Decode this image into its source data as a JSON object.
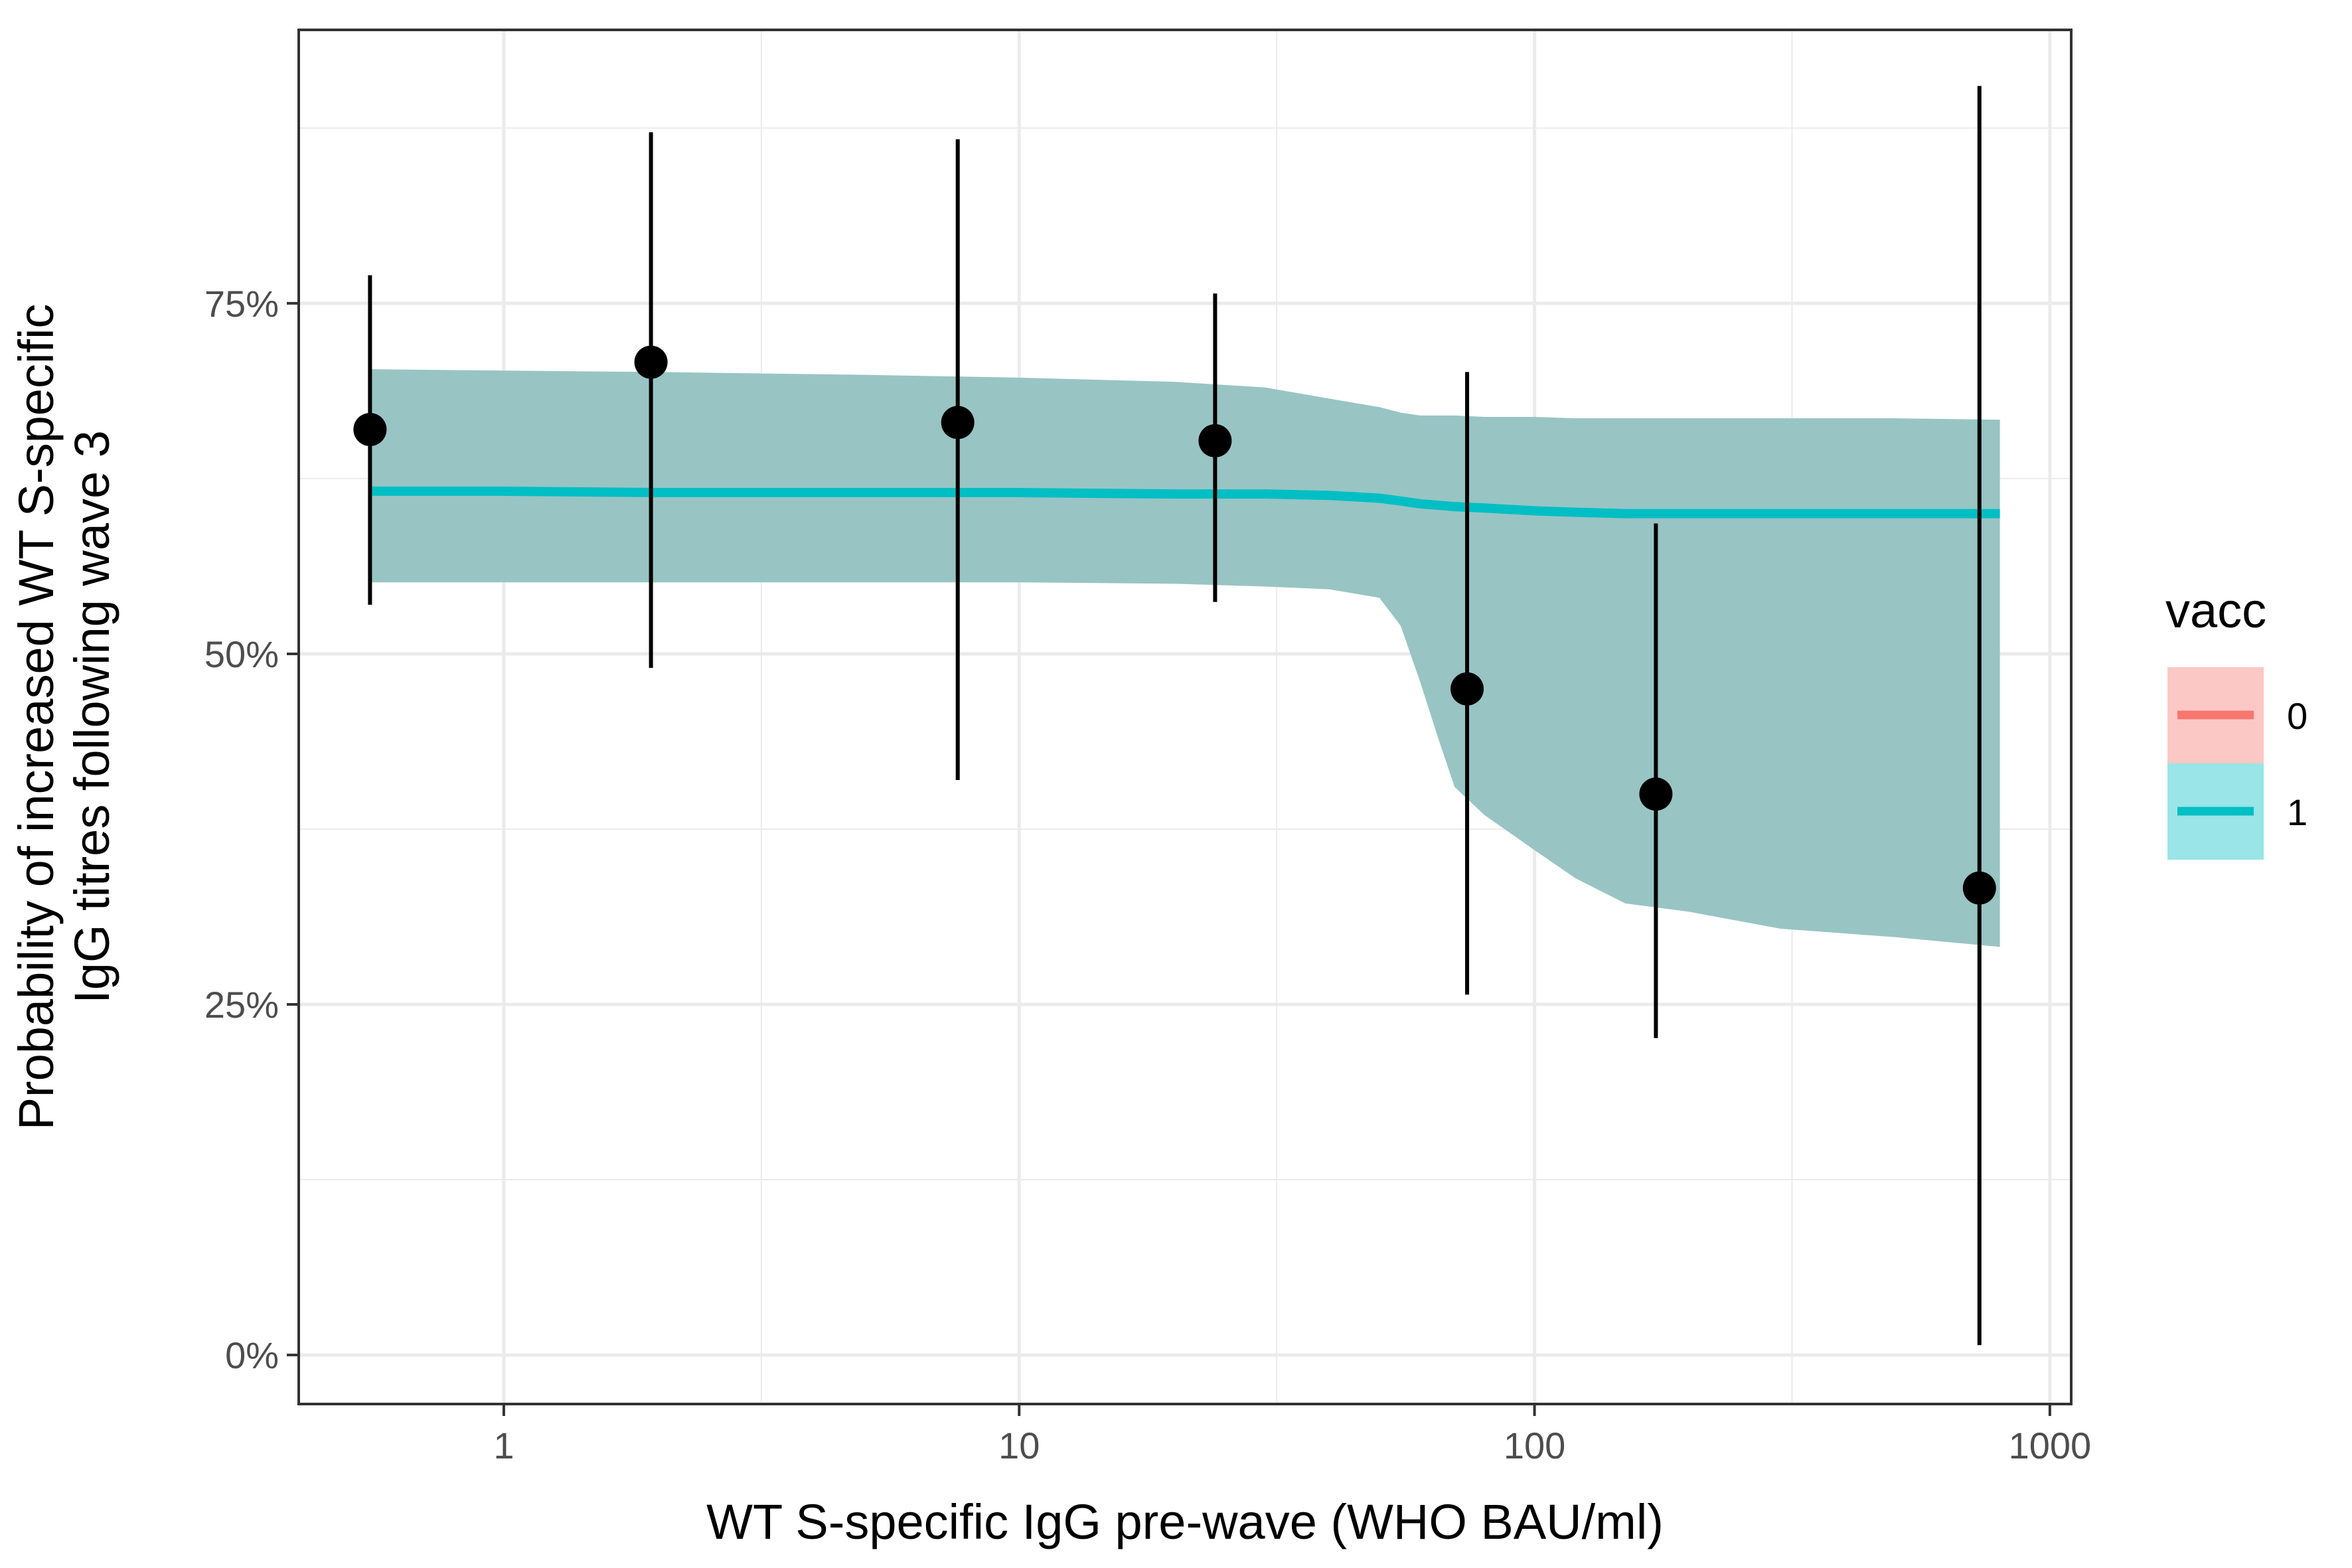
{
  "chart_data": {
    "type": "line",
    "xlabel": "WT S-specific IgG pre-wave (WHO BAU/ml)",
    "ylabel_line1": "Probability of increased WT S-specific",
    "ylabel_line2": "IgG titres following wave 3",
    "x_scale": "log10",
    "xlim": [
      0.4,
      1100
    ],
    "ylim": [
      -0.035,
      0.945
    ],
    "x_ticks": [
      {
        "value": 1,
        "label": "1"
      },
      {
        "value": 10,
        "label": "10"
      },
      {
        "value": 100,
        "label": "100"
      },
      {
        "value": 1000,
        "label": "1000"
      }
    ],
    "x_minor_ticks": [
      3.16,
      31.6,
      316
    ],
    "y_ticks": [
      {
        "value": 0,
        "label": "0%"
      },
      {
        "value": 0.25,
        "label": "25%"
      },
      {
        "value": 0.5,
        "label": "50%"
      },
      {
        "value": 0.75,
        "label": "75%"
      }
    ],
    "y_minor_ticks": [
      0.125,
      0.375,
      0.625,
      0.875
    ],
    "grid": true,
    "legend": {
      "title": "vacc",
      "position": "right",
      "entries": [
        {
          "label": "0",
          "line_color": "#F8766D",
          "fill_color": "#F8766D"
        },
        {
          "label": "1",
          "line_color": "#00BFC4",
          "fill_color": "#00BFC4"
        }
      ]
    },
    "series": [
      {
        "name": "1",
        "color": "#00BFC4",
        "ribbon_color": "#99C4C4",
        "points": [
          {
            "x": 0.55,
            "y": 0.616,
            "lo": 0.551,
            "hi": 0.703
          },
          {
            "x": 1.0,
            "y": 0.616,
            "lo": 0.551,
            "hi": 0.702
          },
          {
            "x": 2.0,
            "y": 0.615,
            "lo": 0.551,
            "hi": 0.701
          },
          {
            "x": 5.0,
            "y": 0.615,
            "lo": 0.551,
            "hi": 0.699
          },
          {
            "x": 10.0,
            "y": 0.615,
            "lo": 0.551,
            "hi": 0.697
          },
          {
            "x": 20.0,
            "y": 0.614,
            "lo": 0.55,
            "hi": 0.694
          },
          {
            "x": 30.0,
            "y": 0.614,
            "lo": 0.548,
            "hi": 0.69
          },
          {
            "x": 40.0,
            "y": 0.613,
            "lo": 0.546,
            "hi": 0.682
          },
          {
            "x": 50.0,
            "y": 0.611,
            "lo": 0.54,
            "hi": 0.676
          },
          {
            "x": 55.0,
            "y": 0.609,
            "lo": 0.52,
            "hi": 0.672
          },
          {
            "x": 60.0,
            "y": 0.607,
            "lo": 0.48,
            "hi": 0.67
          },
          {
            "x": 65.0,
            "y": 0.606,
            "lo": 0.44,
            "hi": 0.67
          },
          {
            "x": 70.0,
            "y": 0.605,
            "lo": 0.405,
            "hi": 0.67
          },
          {
            "x": 80.0,
            "y": 0.604,
            "lo": 0.385,
            "hi": 0.669
          },
          {
            "x": 100.0,
            "y": 0.602,
            "lo": 0.36,
            "hi": 0.669
          },
          {
            "x": 120.0,
            "y": 0.601,
            "lo": 0.34,
            "hi": 0.668
          },
          {
            "x": 150.0,
            "y": 0.6,
            "lo": 0.322,
            "hi": 0.668
          },
          {
            "x": 200.0,
            "y": 0.6,
            "lo": 0.316,
            "hi": 0.668
          },
          {
            "x": 300.0,
            "y": 0.6,
            "lo": 0.304,
            "hi": 0.668
          },
          {
            "x": 500.0,
            "y": 0.6,
            "lo": 0.298,
            "hi": 0.668
          },
          {
            "x": 800.0,
            "y": 0.6,
            "lo": 0.291,
            "hi": 0.667
          }
        ]
      }
    ],
    "observed": [
      {
        "x": 0.55,
        "y": 0.66,
        "lo": 0.535,
        "hi": 0.77
      },
      {
        "x": 1.93,
        "y": 0.708,
        "lo": 0.49,
        "hi": 0.872
      },
      {
        "x": 7.6,
        "y": 0.665,
        "lo": 0.41,
        "hi": 0.867
      },
      {
        "x": 24.0,
        "y": 0.652,
        "lo": 0.537,
        "hi": 0.757
      },
      {
        "x": 74.0,
        "y": 0.475,
        "lo": 0.257,
        "hi": 0.701
      },
      {
        "x": 172.0,
        "y": 0.4,
        "lo": 0.226,
        "hi": 0.593
      },
      {
        "x": 730.0,
        "y": 0.333,
        "lo": 0.007,
        "hi": 0.905
      }
    ]
  }
}
